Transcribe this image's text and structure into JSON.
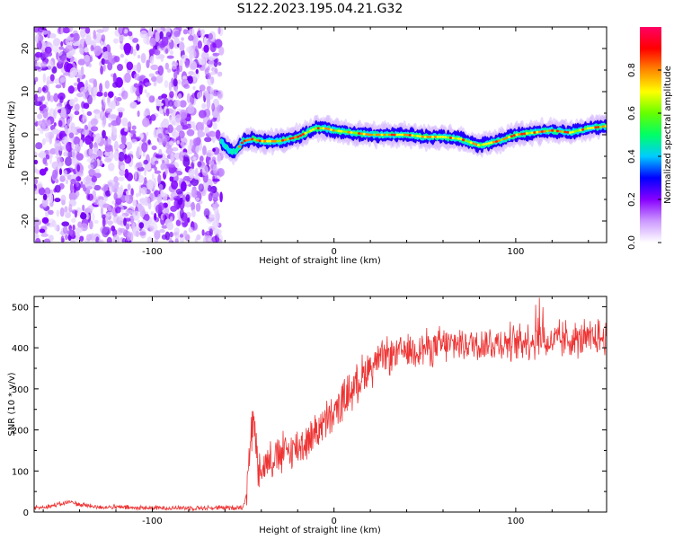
{
  "title": "S122.2023.195.04.21.G32",
  "chart_data": [
    {
      "type": "heatmap",
      "xlabel": "Height of straight line (km)",
      "ylabel": "Frequency (Hz)",
      "xlim": [
        -165,
        150
      ],
      "ylim": [
        -25,
        25
      ],
      "xticks": [
        -100,
        0,
        100
      ],
      "xtick_labels": [
        "-100",
        "0",
        "100"
      ],
      "yticks": [
        -20,
        -10,
        0,
        10,
        20
      ],
      "ytick_labels": [
        "-20",
        "-10",
        "0",
        "10",
        "20"
      ],
      "grid": false,
      "noise_region_x": [
        -165,
        -62
      ],
      "signal_region_x": [
        -62,
        150
      ],
      "ridge": {
        "x": [
          -62,
          -58,
          -54,
          -50,
          -45,
          -40,
          -35,
          -30,
          -25,
          -20,
          -15,
          -10,
          -5,
          0,
          10,
          20,
          30,
          40,
          50,
          60,
          70,
          80,
          90,
          100,
          110,
          120,
          130,
          140,
          150
        ],
        "y": [
          -1.5,
          -3.5,
          -4.0,
          -1.5,
          -1.0,
          -1.5,
          -1.5,
          -1.5,
          -1.0,
          -0.5,
          0.5,
          1.5,
          1.5,
          1.0,
          0.5,
          0.0,
          0.0,
          0.0,
          -0.5,
          -0.5,
          -1.0,
          -2.5,
          -1.5,
          0.0,
          0.5,
          1.0,
          0.5,
          1.5,
          2.0
        ]
      },
      "colorbar": {
        "label": "Normalized spectral amplitude",
        "range": [
          0,
          1
        ],
        "ticks": [
          0.0,
          0.2,
          0.4,
          0.6,
          0.8
        ],
        "tick_labels": [
          "0.0",
          "0.2",
          "0.4",
          "0.6",
          "0.8"
        ],
        "colors": [
          "#ffffff",
          "#cc99ff",
          "#8800ff",
          "#0000ff",
          "#00ccff",
          "#00ff66",
          "#66ff00",
          "#ffff00",
          "#ff8800",
          "#ff0000",
          "#ff0066"
        ]
      }
    },
    {
      "type": "line",
      "xlabel": "Height of straight line (km)",
      "ylabel": "SNR (10 * v/v)",
      "xlim": [
        -165,
        150
      ],
      "ylim": [
        0,
        525
      ],
      "xticks": [
        -100,
        0,
        100
      ],
      "xtick_labels": [
        "-100",
        "0",
        "100"
      ],
      "yticks": [
        0,
        100,
        200,
        300,
        400,
        500
      ],
      "ytick_labels": [
        "0",
        "100",
        "200",
        "300",
        "400",
        "500"
      ],
      "grid": false,
      "color": "#ee3333",
      "series": [
        {
          "x": [
            -165,
            -155,
            -145,
            -140,
            -130,
            -120,
            -110,
            -100,
            -90,
            -80,
            -70,
            -60,
            -50,
            -48,
            -46,
            -44,
            -42,
            -40,
            -35,
            -30,
            -25,
            -20,
            -15,
            -10,
            -5,
            0,
            5,
            10,
            15,
            20,
            25,
            30,
            40,
            50,
            60,
            70,
            80,
            90,
            100,
            110,
            120,
            130,
            140,
            150
          ],
          "y": [
            10,
            15,
            25,
            18,
            12,
            12,
            10,
            10,
            10,
            10,
            10,
            10,
            12,
            50,
            180,
            220,
            120,
            110,
            130,
            140,
            150,
            160,
            170,
            200,
            215,
            240,
            270,
            300,
            330,
            355,
            370,
            380,
            395,
            400,
            405,
            410,
            410,
            410,
            415,
            420,
            415,
            420,
            420,
            425
          ]
        }
      ]
    }
  ]
}
